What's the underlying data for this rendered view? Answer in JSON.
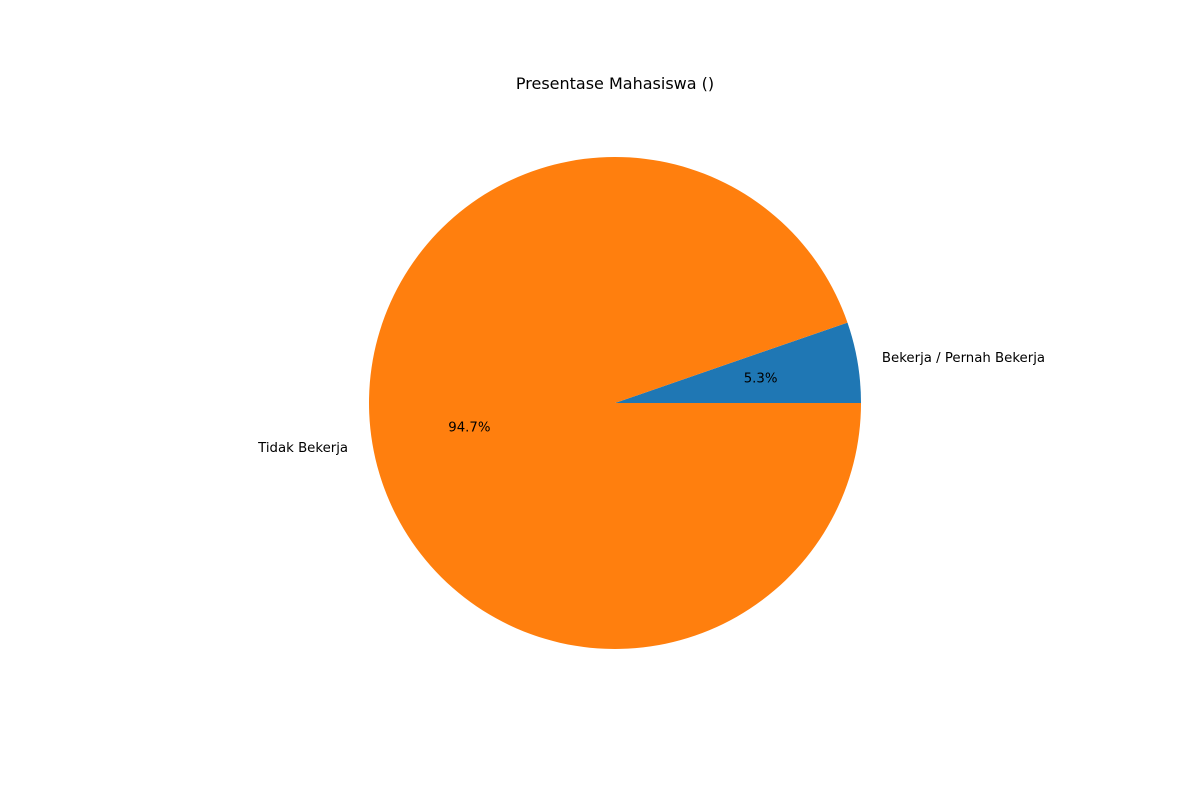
{
  "chart_data": {
    "type": "pie",
    "title": "Presentase Mahasiswa ()",
    "slices": [
      {
        "label": "Bekerja / Pernah Bekerja",
        "value": 5.3,
        "pct_label": "5.3%",
        "color": "#1f77b4"
      },
      {
        "label": "Tidak Bekerja",
        "value": 94.7,
        "pct_label": "94.7%",
        "color": "#ff7f0e"
      }
    ],
    "start_angle_deg": 0,
    "direction": "counterclockwise",
    "legend": "none"
  }
}
